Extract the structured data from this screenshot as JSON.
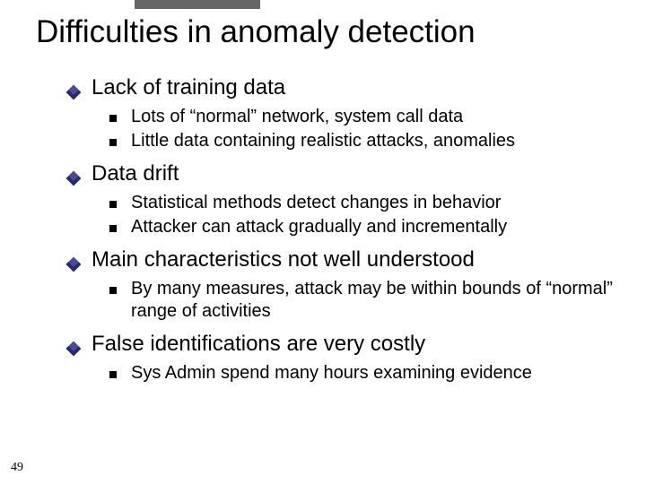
{
  "slide": {
    "title": "Difficulties in anomaly detection",
    "page_number": "49",
    "bullets": [
      {
        "text": "Lack of training data",
        "sub": [
          "Lots of “normal” network, system call data",
          "Little data containing realistic attacks, anomalies"
        ]
      },
      {
        "text": "Data drift",
        "sub": [
          "Statistical methods detect changes in behavior",
          "Attacker can attack gradually and incrementally"
        ]
      },
      {
        "text": "Main characteristics not well understood",
        "sub": [
          "By many measures, attack may be within bounds of “normal” range of activities"
        ]
      },
      {
        "text": "False identifications are very costly",
        "sub": [
          "Sys Admin spend many hours examining evidence"
        ]
      }
    ]
  },
  "style": {
    "background_color": "#ffffff",
    "title_color": "#000000",
    "title_fontsize": 35,
    "l1_fontsize": 24,
    "l2_fontsize": 20,
    "diamond_color_light": "#4a4a9a",
    "diamond_color_dark": "#2a2a6a",
    "square_color": "#000000",
    "top_bar_color": "#666666",
    "font_family": "Verdana, Geneva, sans-serif"
  }
}
